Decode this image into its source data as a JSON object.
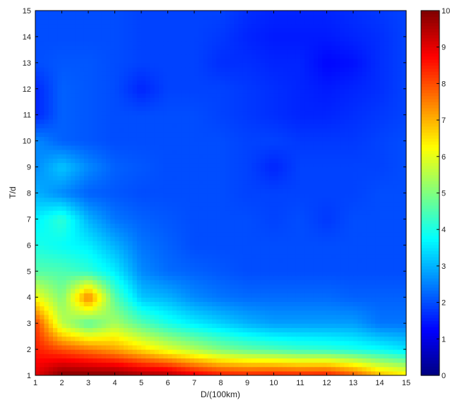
{
  "chart_data": {
    "type": "heatmap",
    "title": "",
    "xlabel": "D/(100km)",
    "ylabel": "T/d",
    "xlim": [
      1,
      15
    ],
    "ylim": [
      1,
      15
    ],
    "x_ticks": [
      "1",
      "2",
      "3",
      "4",
      "5",
      "6",
      "7",
      "8",
      "9",
      "10",
      "11",
      "12",
      "13",
      "14",
      "15"
    ],
    "y_ticks": [
      "1",
      "2",
      "3",
      "4",
      "5",
      "6",
      "7",
      "8",
      "9",
      "10",
      "11",
      "12",
      "13",
      "14",
      "15"
    ],
    "colorbar": {
      "range": [
        0,
        10
      ],
      "ticks": [
        "0",
        "1",
        "2",
        "3",
        "4",
        "5",
        "6",
        "7",
        "8",
        "9",
        "10"
      ],
      "colormap": "jet"
    },
    "x": [
      1,
      2,
      3,
      4,
      5,
      6,
      7,
      8,
      9,
      10,
      11,
      12,
      13,
      14,
      15
    ],
    "y": [
      1,
      2,
      3,
      4,
      5,
      6,
      7,
      8,
      9,
      10,
      11,
      12,
      13,
      14,
      15
    ],
    "values": [
      [
        9.0,
        10.0,
        10.0,
        10.0,
        9.7,
        9.6,
        9.0,
        8.6,
        8.5,
        8.6,
        8.5,
        8.6,
        8.0,
        7.0,
        6.5
      ],
      [
        8.5,
        8.0,
        7.6,
        7.2,
        6.6,
        6.0,
        5.5,
        5.0,
        4.7,
        4.5,
        4.3,
        4.2,
        4.0,
        3.8,
        3.5
      ],
      [
        8.2,
        5.6,
        4.6,
        5.4,
        4.6,
        4.0,
        3.6,
        3.3,
        3.0,
        2.8,
        2.8,
        2.8,
        2.8,
        2.4,
        2.4
      ],
      [
        6.2,
        5.0,
        7.6,
        4.6,
        3.2,
        3.0,
        2.6,
        2.4,
        2.3,
        2.3,
        2.3,
        2.3,
        2.2,
        2.2,
        2.2
      ],
      [
        4.6,
        4.5,
        4.2,
        3.6,
        2.6,
        2.3,
        2.2,
        2.1,
        2.0,
        2.0,
        2.0,
        2.0,
        2.0,
        2.0,
        2.0
      ],
      [
        4.0,
        3.8,
        3.6,
        3.0,
        2.4,
        2.2,
        2.0,
        2.0,
        2.0,
        2.0,
        2.0,
        2.0,
        2.0,
        2.0,
        2.0
      ],
      [
        3.6,
        4.2,
        3.0,
        2.4,
        2.2,
        2.1,
        2.0,
        2.0,
        2.0,
        1.9,
        2.0,
        1.8,
        2.0,
        2.0,
        2.0
      ],
      [
        3.0,
        2.6,
        2.2,
        2.1,
        2.0,
        2.0,
        2.0,
        2.0,
        1.9,
        1.9,
        1.9,
        1.9,
        1.9,
        2.0,
        2.0
      ],
      [
        2.6,
        3.2,
        2.6,
        2.2,
        2.1,
        2.0,
        2.0,
        2.0,
        1.9,
        1.6,
        1.9,
        1.9,
        1.9,
        1.9,
        2.0
      ],
      [
        2.6,
        2.2,
        2.1,
        2.0,
        2.0,
        2.0,
        2.0,
        2.0,
        1.9,
        1.9,
        1.8,
        1.8,
        1.8,
        1.9,
        2.0
      ],
      [
        1.6,
        2.2,
        2.1,
        2.0,
        2.0,
        2.0,
        2.0,
        1.9,
        1.8,
        1.7,
        1.6,
        1.6,
        1.7,
        1.8,
        1.9
      ],
      [
        1.6,
        2.2,
        2.1,
        2.0,
        1.6,
        1.9,
        1.9,
        1.9,
        1.8,
        1.7,
        1.6,
        1.5,
        1.6,
        1.7,
        1.9
      ],
      [
        2.0,
        2.1,
        2.1,
        2.0,
        1.9,
        1.9,
        1.9,
        1.7,
        1.7,
        1.6,
        1.6,
        1.3,
        1.4,
        1.7,
        1.9
      ],
      [
        2.0,
        2.0,
        2.0,
        2.0,
        1.9,
        1.9,
        1.9,
        1.8,
        1.6,
        1.5,
        1.5,
        1.5,
        1.6,
        1.7,
        1.9
      ],
      [
        2.0,
        2.0,
        2.0,
        2.0,
        1.9,
        1.9,
        1.9,
        1.9,
        1.7,
        1.6,
        1.6,
        1.6,
        1.7,
        1.8,
        1.9
      ]
    ],
    "grid": false,
    "legend": "colorbar-right"
  }
}
